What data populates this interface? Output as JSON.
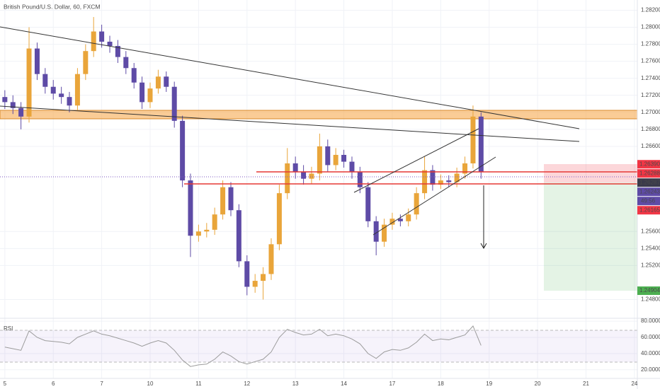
{
  "chart_data": {
    "type": "candlestick",
    "title": "British Pound/U.S. Dollar, 60, FXCM",
    "x": [
      0,
      0.167,
      0.333,
      0.5,
      0.667,
      0.833,
      1,
      1.167,
      1.333,
      1.5,
      1.667,
      1.833,
      2,
      2.167,
      2.333,
      2.5,
      2.667,
      2.833,
      3,
      3.167,
      3.333,
      3.5,
      3.667,
      3.833,
      4,
      4.167,
      4.333,
      4.5,
      4.667,
      4.833,
      5,
      5.167,
      5.333,
      5.5,
      5.667,
      5.833,
      6,
      6.167,
      6.333,
      6.5,
      6.667,
      6.833,
      7,
      7.167,
      7.333,
      7.5,
      7.667,
      7.833,
      8,
      8.167,
      8.333,
      8.5,
      8.667,
      8.833,
      9,
      9.167,
      9.333,
      9.5,
      9.667,
      9.833
    ],
    "open": [
      1.2718,
      1.2712,
      1.2705,
      1.2695,
      1.2775,
      1.2745,
      1.273,
      1.2722,
      1.2718,
      1.2708,
      1.2745,
      1.2772,
      1.2795,
      1.2783,
      1.2778,
      1.2765,
      1.2752,
      1.2735,
      1.2712,
      1.2728,
      1.2742,
      1.273,
      1.269,
      1.262,
      1.2555,
      1.256,
      1.2562,
      1.258,
      1.2612,
      1.2585,
      1.2525,
      1.2495,
      1.2502,
      1.251,
      1.2545,
      1.2605,
      1.264,
      1.263,
      1.2622,
      1.2628,
      1.266,
      1.2638,
      1.265,
      1.2642,
      1.263,
      1.2612,
      1.2572,
      1.2548,
      1.2568,
      1.2575,
      1.2572,
      1.258,
      1.2605,
      1.2632,
      1.2615,
      1.262,
      1.2618,
      1.2628,
      1.264,
      1.2695
    ],
    "high": [
      1.2726,
      1.272,
      1.2712,
      1.28,
      1.2782,
      1.2752,
      1.2738,
      1.273,
      1.2724,
      1.2752,
      1.278,
      1.2812,
      1.2803,
      1.279,
      1.2785,
      1.2772,
      1.2758,
      1.2742,
      1.2735,
      1.275,
      1.2748,
      1.2736,
      1.2696,
      1.2628,
      1.2568,
      1.257,
      1.2588,
      1.262,
      1.2618,
      1.2592,
      1.2532,
      1.251,
      1.2518,
      1.2552,
      1.2615,
      1.2658,
      1.2648,
      1.2638,
      1.2636,
      1.2675,
      1.2668,
      1.2658,
      1.2656,
      1.2648,
      1.2636,
      1.2618,
      1.2578,
      1.2575,
      1.2582,
      1.258,
      1.2587,
      1.2612,
      1.2648,
      1.2638,
      1.2627,
      1.2626,
      1.2635,
      1.2648,
      1.2708,
      1.27
    ],
    "low": [
      1.2704,
      1.2698,
      1.268,
      1.2688,
      1.2738,
      1.2722,
      1.2715,
      1.271,
      1.27,
      1.2702,
      1.2738,
      1.2765,
      1.2776,
      1.277,
      1.2758,
      1.2745,
      1.2728,
      1.2704,
      1.2705,
      1.2722,
      1.2724,
      1.2682,
      1.2612,
      1.253,
      1.2548,
      1.2553,
      1.2556,
      1.2574,
      1.2578,
      1.2518,
      1.2485,
      1.2488,
      1.248,
      1.2503,
      1.2538,
      1.2598,
      1.2622,
      1.2615,
      1.2616,
      1.262,
      1.263,
      1.2632,
      1.2635,
      1.2622,
      1.2605,
      1.2565,
      1.2532,
      1.2542,
      1.2562,
      1.2566,
      1.2566,
      1.2574,
      1.2598,
      1.2608,
      1.261,
      1.2612,
      1.2612,
      1.2622,
      1.2634,
      1.2622
    ],
    "close": [
      1.2712,
      1.2705,
      1.2695,
      1.2775,
      1.2745,
      1.273,
      1.2722,
      1.2718,
      1.2708,
      1.2745,
      1.2772,
      1.2795,
      1.2783,
      1.2778,
      1.2765,
      1.2752,
      1.2735,
      1.2712,
      1.2728,
      1.2742,
      1.273,
      1.269,
      1.262,
      1.2555,
      1.256,
      1.2562,
      1.258,
      1.2612,
      1.2585,
      1.2525,
      1.2495,
      1.2502,
      1.251,
      1.2545,
      1.2605,
      1.264,
      1.263,
      1.2622,
      1.2628,
      1.266,
      1.2638,
      1.265,
      1.2642,
      1.263,
      1.2612,
      1.2572,
      1.2548,
      1.2568,
      1.2575,
      1.2572,
      1.258,
      1.2605,
      1.2632,
      1.2615,
      1.262,
      1.2618,
      1.2628,
      1.264,
      1.2695,
      1.263
    ],
    "up_color": "#e9a53a",
    "down_color": "#5e4ba6",
    "xlim": [
      -0.1,
      13.06
    ],
    "xticks": [
      {
        "value": 0,
        "label": "5"
      },
      {
        "value": 1,
        "label": "6"
      },
      {
        "value": 2,
        "label": "7"
      },
      {
        "value": 3,
        "label": "10"
      },
      {
        "value": 4,
        "label": "11"
      },
      {
        "value": 5,
        "label": "12"
      },
      {
        "value": 6,
        "label": "13"
      },
      {
        "value": 7,
        "label": "14"
      },
      {
        "value": 8,
        "label": "17"
      },
      {
        "value": 9,
        "label": "18"
      },
      {
        "value": 10,
        "label": "19"
      },
      {
        "value": 11,
        "label": "20"
      },
      {
        "value": 12,
        "label": "21"
      },
      {
        "value": 13,
        "label": "24"
      }
    ],
    "ylim": [
      1.2458,
      1.2832
    ],
    "yticks": [
      {
        "value": 1.282,
        "label": "1.28200"
      },
      {
        "value": 1.28,
        "label": "1.28000"
      },
      {
        "value": 1.278,
        "label": "1.27800"
      },
      {
        "value": 1.276,
        "label": "1.27600"
      },
      {
        "value": 1.274,
        "label": "1.27400"
      },
      {
        "value": 1.272,
        "label": "1.27200"
      },
      {
        "value": 1.27,
        "label": "1.27000"
      },
      {
        "value": 1.268,
        "label": "1.26800"
      },
      {
        "value": 1.266,
        "label": "1.26600"
      },
      {
        "value": 1.256,
        "label": "1.25600"
      },
      {
        "value": 1.254,
        "label": "1.25400"
      },
      {
        "value": 1.252,
        "label": "1.25200"
      },
      {
        "value": 1.248,
        "label": "1.24800"
      }
    ],
    "price_labels": [
      {
        "value": 1.2639,
        "label": "1.26390",
        "color": "#f23645"
      },
      {
        "value": 1.26288,
        "label": "1.26288",
        "color": "#f23645"
      },
      {
        "value": 1.26287,
        "label": "1.26287",
        "color": "#3a3a4a"
      },
      {
        "value": 1.26243,
        "label": "1.26243",
        "color": "#5e4ba6"
      },
      {
        "value": 1.26165,
        "label": "1.26165",
        "color": "#f23645"
      },
      {
        "value": 1.24904,
        "label": "1.24904",
        "color": "#4caf50"
      }
    ],
    "countdown": "49:56",
    "rsi": {
      "name": "RSI",
      "color": "#9c9c9c",
      "values": [
        48,
        46,
        44,
        68,
        60,
        56,
        55,
        54,
        52,
        60,
        64,
        68,
        64,
        62,
        59,
        56,
        53,
        49,
        53,
        56,
        53,
        44,
        32,
        24,
        26,
        27,
        33,
        42,
        37,
        30,
        27,
        30,
        33,
        42,
        60,
        70,
        66,
        63,
        64,
        70,
        62,
        64,
        62,
        58,
        52,
        40,
        34,
        42,
        45,
        44,
        47,
        54,
        64,
        56,
        58,
        57,
        60,
        63,
        74,
        50
      ],
      "ylim": [
        9.3,
        83.6
      ],
      "yticks": [
        {
          "value": 80,
          "label": "80.0000"
        },
        {
          "value": 60,
          "label": "60.0000"
        },
        {
          "value": 40,
          "label": "40.0000"
        },
        {
          "value": 20,
          "label": "20.0000"
        }
      ]
    }
  }
}
